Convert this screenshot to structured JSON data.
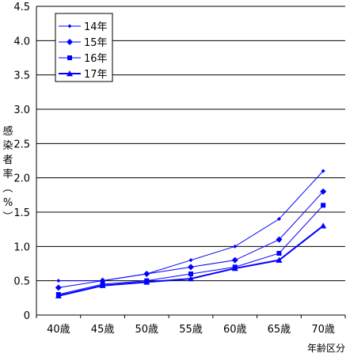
{
  "chart_data": {
    "type": "line",
    "title": "",
    "xlabel": "年齢区分",
    "ylabel": "感染者率（%）",
    "ylim": [
      0,
      4.5
    ],
    "yticks": [
      0,
      0.5,
      1.0,
      1.5,
      2.0,
      2.5,
      3.0,
      3.5,
      4.0,
      4.5
    ],
    "ytick_labels": [
      "0",
      "0.5",
      "1.0",
      "1.5",
      "2.0",
      "2.5",
      "3.0",
      "3.5",
      "4.0",
      "4.5"
    ],
    "categories": [
      "40歳",
      "45歳",
      "50歳",
      "55歳",
      "60歳",
      "65歳",
      "70歳"
    ],
    "grid": true,
    "legend_position": "top-left",
    "color": "#0000ff",
    "series": [
      {
        "name": "14年",
        "marker": "small-diamond",
        "values": [
          0.5,
          0.5,
          0.6,
          0.8,
          1.0,
          1.4,
          2.1
        ]
      },
      {
        "name": "15年",
        "marker": "diamond",
        "values": [
          0.4,
          0.5,
          0.6,
          0.7,
          0.8,
          1.1,
          1.8
        ]
      },
      {
        "name": "16年",
        "marker": "square",
        "values": [
          0.3,
          0.45,
          0.5,
          0.6,
          0.7,
          0.9,
          1.6
        ]
      },
      {
        "name": "17年",
        "marker": "triangle",
        "values": [
          0.28,
          0.43,
          0.48,
          0.53,
          0.68,
          0.8,
          1.3
        ]
      }
    ]
  }
}
